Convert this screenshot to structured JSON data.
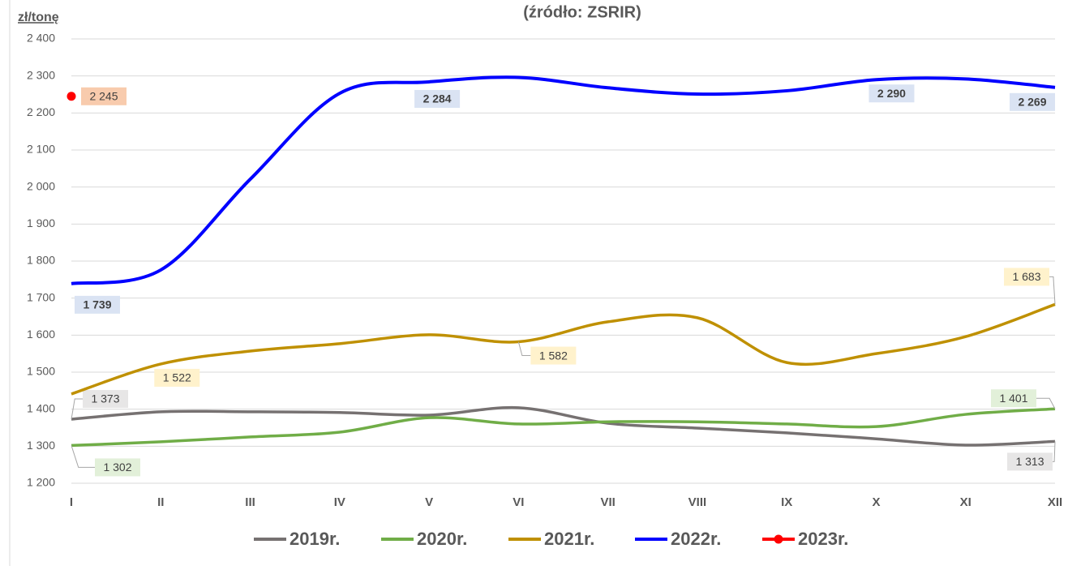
{
  "chart_data": {
    "type": "line",
    "title": "(źródło: ZSRIR)",
    "y_axis_label": "zł/tonę",
    "categories": [
      "I",
      "II",
      "III",
      "IV",
      "V",
      "VI",
      "VII",
      "VIII",
      "IX",
      "X",
      "XI",
      "XII"
    ],
    "ylim": [
      1200,
      2400
    ],
    "yticks": [
      {
        "value": 1200,
        "label": "1 200"
      },
      {
        "value": 1300,
        "label": "1 300"
      },
      {
        "value": 1400,
        "label": "1 400"
      },
      {
        "value": 1500,
        "label": "1 500"
      },
      {
        "value": 1600,
        "label": "1 600"
      },
      {
        "value": 1700,
        "label": "1 700"
      },
      {
        "value": 1800,
        "label": "1 800"
      },
      {
        "value": 1900,
        "label": "1 900"
      },
      {
        "value": 2000,
        "label": "2 000"
      },
      {
        "value": 2100,
        "label": "2 100"
      },
      {
        "value": 2200,
        "label": "2 200"
      },
      {
        "value": 2300,
        "label": "2 300"
      },
      {
        "value": 2400,
        "label": "2 400"
      }
    ],
    "grid": true,
    "legend": "bottom",
    "series": [
      {
        "name": "2019r.",
        "color": "#767171",
        "values": [
          1373,
          1393,
          1393,
          1391,
          1384,
          1404,
          1362,
          1349,
          1336,
          1320,
          1303,
          1313
        ],
        "value_labels": [
          "1 373",
          null,
          null,
          null,
          null,
          null,
          null,
          null,
          null,
          null,
          null,
          "1 313"
        ]
      },
      {
        "name": "2020r.",
        "color": "#70ad47",
        "values": [
          1302,
          1312,
          1325,
          1338,
          1377,
          1360,
          1366,
          1366,
          1360,
          1353,
          1386,
          1401
        ],
        "value_labels": [
          "1 302",
          null,
          null,
          null,
          null,
          null,
          null,
          null,
          null,
          null,
          null,
          "1 401"
        ]
      },
      {
        "name": "2021r.",
        "color": "#bf9000",
        "values": [
          1441,
          1522,
          1557,
          1577,
          1601,
          1582,
          1636,
          1647,
          1526,
          1550,
          1596,
          1683
        ],
        "value_labels": [
          null,
          "1 522",
          null,
          null,
          null,
          "1 582",
          null,
          null,
          null,
          null,
          null,
          "1 683"
        ]
      },
      {
        "name": "2022r.",
        "color": "#0000ff",
        "values": [
          1739,
          1776,
          2021,
          2253,
          2284,
          2296,
          2268,
          2251,
          2260,
          2290,
          2292,
          2269
        ],
        "value_labels": [
          "1 739",
          null,
          null,
          null,
          "2 284",
          null,
          null,
          null,
          null,
          "2 290",
          null,
          "2 269"
        ]
      },
      {
        "name": "2023r.",
        "color": "#ff0000",
        "values": [
          2245,
          null,
          null,
          null,
          null,
          null,
          null,
          null,
          null,
          null,
          null,
          null
        ],
        "value_labels": [
          "2 245",
          null,
          null,
          null,
          null,
          null,
          null,
          null,
          null,
          null,
          null,
          null
        ]
      }
    ]
  }
}
